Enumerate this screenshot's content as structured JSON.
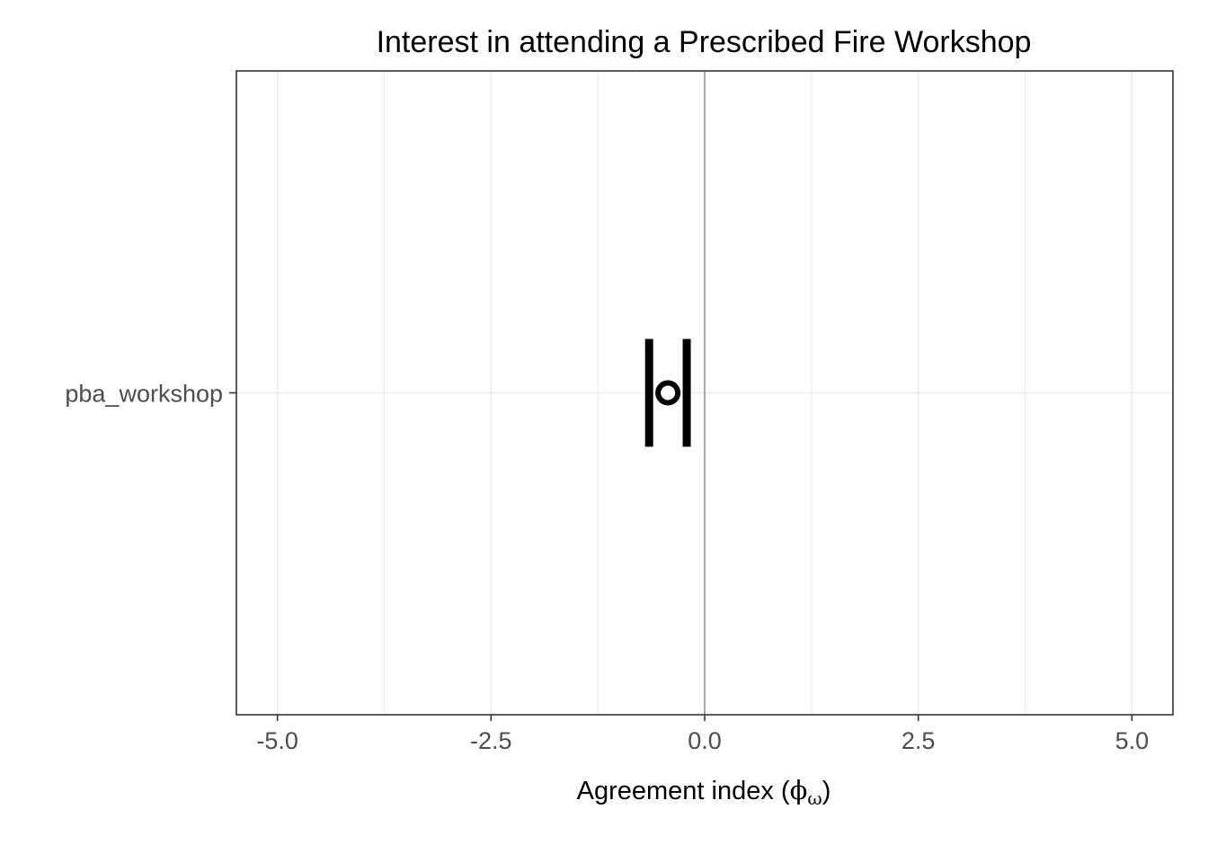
{
  "chart_data": {
    "type": "scatter",
    "title": "Interest in attending a Prescribed Fire Workshop",
    "xlabel": "Agreement index (",
    "xlabel_symbol": "ϕ",
    "xlabel_subscript": "ω",
    "xlabel_suffix": ")",
    "ylabel": "",
    "xlim": [
      -5.48,
      5.48
    ],
    "x_ticks": [
      -5.0,
      -2.5,
      0.0,
      2.5,
      5.0
    ],
    "x_tick_labels": [
      "-5.0",
      "-2.5",
      "0.0",
      "2.5",
      "5.0"
    ],
    "x_minor_ticks": [
      -3.75,
      -1.25,
      1.25,
      3.75
    ],
    "categories": [
      "pba_workshop"
    ],
    "reference_line_x": 0,
    "grid": true,
    "series": [
      {
        "values": [
          {
            "category": "pba_workshop",
            "x": -0.43,
            "lower": -0.65,
            "upper": -0.21
          }
        ]
      }
    ],
    "colors": {
      "point": "#000000",
      "errorbar": "#000000",
      "grid": "#ebebeb",
      "reference_line": "#999999",
      "panel_border": "#333333"
    }
  }
}
